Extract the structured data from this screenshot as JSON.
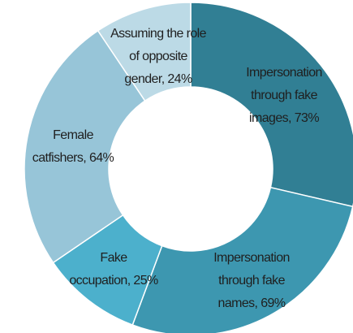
{
  "chart_data": {
    "type": "donut",
    "labels": [
      [
        "Impersonation",
        "through fake",
        "images, 73%"
      ],
      [
        "Impersonation",
        "through fake",
        "names, 69%"
      ],
      [
        "Fake",
        "occupation, 25%"
      ],
      [
        "Female",
        "catfishers, 64%"
      ],
      [
        "Assuming the role",
        "of opposite",
        "gender, 24%"
      ]
    ],
    "values": [
      73,
      69,
      25,
      64,
      24
    ],
    "colors": [
      "#317f94",
      "#3d97b0",
      "#4cb0cc",
      "#97c5d8",
      "#bcdae6"
    ]
  }
}
